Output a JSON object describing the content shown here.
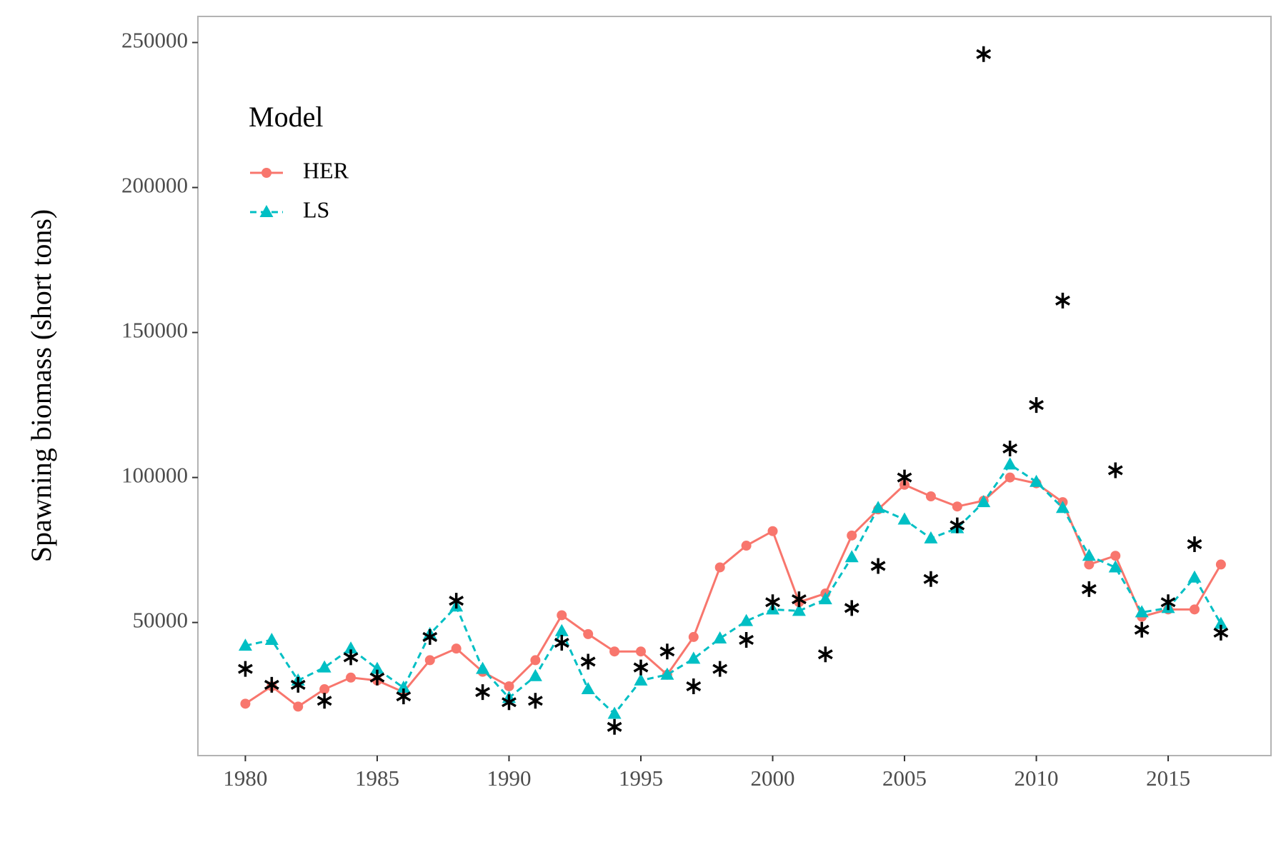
{
  "chart_data": {
    "type": "line",
    "y_label": "Spawning biomass (short tons)",
    "legend_title": "Model",
    "legend_position": "top-left",
    "x": [
      1980,
      1981,
      1982,
      1983,
      1984,
      1985,
      1986,
      1987,
      1988,
      1989,
      1990,
      1991,
      1992,
      1993,
      1994,
      1995,
      1996,
      1997,
      1998,
      1999,
      2000,
      2001,
      2002,
      2003,
      2004,
      2005,
      2006,
      2007,
      2008,
      2009,
      2010,
      2011,
      2012,
      2013,
      2014,
      2015,
      2016,
      2017
    ],
    "series": [
      {
        "name": "HER",
        "color": "#F8766D",
        "line_style": "solid",
        "marker": "circle",
        "values": [
          22000,
          28000,
          21000,
          27000,
          31000,
          30000,
          26000,
          37000,
          41000,
          33000,
          28000,
          37000,
          52500,
          46000,
          40000,
          40000,
          32000,
          45000,
          69000,
          76500,
          81500,
          57000,
          60000,
          80000,
          89000,
          97500,
          93500,
          90000,
          92000,
          100000,
          98000,
          91500,
          70000,
          73000,
          52000,
          54500,
          54500,
          70000
        ]
      },
      {
        "name": "LS",
        "color": "#00BFC4",
        "line_style": "dashed",
        "marker": "triangle",
        "values": [
          42000,
          44000,
          30000,
          34500,
          41000,
          34000,
          27500,
          46000,
          55500,
          34000,
          24000,
          31500,
          47000,
          27000,
          18500,
          30000,
          32000,
          37500,
          44500,
          50500,
          54500,
          54000,
          58000,
          72500,
          89500,
          85500,
          79000,
          82500,
          91500,
          104500,
          98500,
          89500,
          73000,
          69000,
          53500,
          55000,
          65500,
          49500
        ]
      }
    ],
    "observations": {
      "color": "#000000",
      "marker": "asterisk",
      "values": [
        34000,
        28500,
        28500,
        23000,
        38000,
        31000,
        24500,
        45000,
        57500,
        26000,
        22500,
        23000,
        43000,
        36500,
        14000,
        34500,
        40000,
        28000,
        34000,
        44000,
        57000,
        58000,
        39000,
        55000,
        69500,
        100000,
        65000,
        83500,
        246000,
        110000,
        125000,
        161000,
        61500,
        102500,
        47500,
        57000,
        77000,
        46500
      ]
    },
    "xlim": [
      1978.2,
      2018.9
    ],
    "xticks": [
      1980,
      1985,
      1990,
      1995,
      2000,
      2005,
      2010,
      2015
    ],
    "ylim": [
      4100,
      259000
    ],
    "yticks": [
      50000,
      100000,
      150000,
      200000,
      250000
    ],
    "grid": false
  }
}
